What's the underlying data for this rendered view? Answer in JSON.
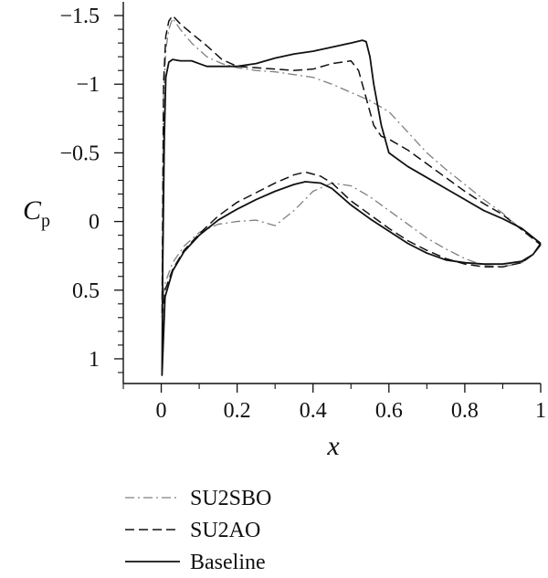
{
  "chart_data": {
    "type": "line",
    "title": "",
    "xlabel": "x",
    "ylabel": "C",
    "ylabel_subscript": "p",
    "xlim": [
      -0.1,
      1.0
    ],
    "ylim": [
      1.18,
      -1.6
    ],
    "y_inverted": true,
    "grid": false,
    "legend_position": "bottom-left",
    "x_ticks": [
      0,
      0.2,
      0.4,
      0.6,
      0.8,
      1
    ],
    "x_tick_labels": [
      "0",
      "0.2",
      "0.4",
      "0.6",
      "0.8",
      "1"
    ],
    "y_ticks": [
      -1.5,
      -1,
      -0.5,
      0,
      0.5,
      1
    ],
    "y_tick_labels": [
      "−1.5",
      "−1",
      "−0.5",
      "0",
      "0.5",
      "1"
    ],
    "series": [
      {
        "name": "SU2SBO",
        "color": "#808080",
        "dash": "dashdot",
        "width": 1.3,
        "upper": {
          "x": [
            0.002,
            0.006,
            0.012,
            0.02,
            0.03,
            0.05,
            0.08,
            0.12,
            0.16,
            0.2,
            0.25,
            0.3,
            0.35,
            0.4,
            0.45,
            0.5,
            0.55,
            0.6,
            0.65,
            0.7,
            0.75,
            0.8,
            0.85,
            0.9,
            0.95,
            1.0
          ],
          "y": [
            0.6,
            -0.9,
            -1.25,
            -1.4,
            -1.48,
            -1.4,
            -1.3,
            -1.2,
            -1.15,
            -1.12,
            -1.1,
            -1.09,
            -1.07,
            -1.05,
            -1.0,
            -0.94,
            -0.88,
            -0.8,
            -0.65,
            -0.5,
            -0.38,
            -0.27,
            -0.16,
            -0.06,
            0.06,
            0.17
          ]
        },
        "lower": {
          "x": [
            0.002,
            0.01,
            0.03,
            0.06,
            0.1,
            0.15,
            0.2,
            0.25,
            0.3,
            0.35,
            0.4,
            0.45,
            0.5,
            0.55,
            0.6,
            0.65,
            0.7,
            0.75,
            0.8,
            0.85,
            0.9,
            0.95,
            0.98,
            1.0
          ],
          "y": [
            0.6,
            0.45,
            0.3,
            0.18,
            0.08,
            0.02,
            0.0,
            -0.01,
            0.03,
            -0.08,
            -0.22,
            -0.28,
            -0.26,
            -0.18,
            -0.08,
            0.02,
            0.12,
            0.2,
            0.27,
            0.32,
            0.33,
            0.3,
            0.24,
            0.17
          ]
        }
      },
      {
        "name": "SU2AO",
        "color": "#111111",
        "dash": "dashed",
        "width": 1.5,
        "upper": {
          "x": [
            0.002,
            0.006,
            0.012,
            0.02,
            0.03,
            0.05,
            0.08,
            0.12,
            0.16,
            0.2,
            0.25,
            0.3,
            0.35,
            0.4,
            0.45,
            0.5,
            0.52,
            0.54,
            0.56,
            0.58,
            0.6,
            0.65,
            0.7,
            0.75,
            0.8,
            0.85,
            0.9,
            0.95,
            1.0
          ],
          "y": [
            0.7,
            -1.0,
            -1.35,
            -1.46,
            -1.5,
            -1.44,
            -1.37,
            -1.28,
            -1.18,
            -1.13,
            -1.12,
            -1.11,
            -1.1,
            -1.11,
            -1.15,
            -1.17,
            -1.1,
            -0.9,
            -0.7,
            -0.62,
            -0.6,
            -0.52,
            -0.42,
            -0.32,
            -0.22,
            -0.13,
            -0.05,
            0.06,
            0.17
          ]
        },
        "lower": {
          "x": [
            0.002,
            0.01,
            0.03,
            0.06,
            0.1,
            0.15,
            0.2,
            0.25,
            0.3,
            0.35,
            0.38,
            0.42,
            0.45,
            0.5,
            0.55,
            0.6,
            0.65,
            0.7,
            0.75,
            0.8,
            0.85,
            0.9,
            0.95,
            0.98,
            1.0
          ],
          "y": [
            0.7,
            0.5,
            0.35,
            0.21,
            0.09,
            -0.04,
            -0.14,
            -0.21,
            -0.28,
            -0.34,
            -0.36,
            -0.33,
            -0.28,
            -0.15,
            -0.05,
            0.05,
            0.14,
            0.21,
            0.27,
            0.31,
            0.33,
            0.33,
            0.3,
            0.24,
            0.17
          ]
        }
      },
      {
        "name": "Baseline",
        "color": "#111111",
        "dash": "solid",
        "width": 1.8,
        "upper": {
          "x": [
            0.002,
            0.004,
            0.008,
            0.012,
            0.02,
            0.03,
            0.05,
            0.08,
            0.1,
            0.12,
            0.15,
            0.2,
            0.25,
            0.3,
            0.35,
            0.4,
            0.45,
            0.5,
            0.53,
            0.54,
            0.55,
            0.56,
            0.58,
            0.6,
            0.65,
            0.7,
            0.75,
            0.8,
            0.85,
            0.9,
            0.95,
            1.0
          ],
          "y": [
            1.12,
            0.3,
            -0.6,
            -1.05,
            -1.16,
            -1.18,
            -1.17,
            -1.17,
            -1.15,
            -1.13,
            -1.13,
            -1.13,
            -1.15,
            -1.19,
            -1.22,
            -1.24,
            -1.27,
            -1.3,
            -1.32,
            -1.31,
            -1.2,
            -1.0,
            -0.7,
            -0.5,
            -0.4,
            -0.32,
            -0.24,
            -0.16,
            -0.08,
            -0.02,
            0.05,
            0.16
          ]
        },
        "lower": {
          "x": [
            0.002,
            0.01,
            0.03,
            0.06,
            0.1,
            0.15,
            0.2,
            0.25,
            0.3,
            0.35,
            0.38,
            0.42,
            0.45,
            0.5,
            0.55,
            0.6,
            0.65,
            0.7,
            0.75,
            0.8,
            0.85,
            0.9,
            0.95,
            0.98,
            1.0
          ],
          "y": [
            1.12,
            0.55,
            0.36,
            0.22,
            0.1,
            -0.01,
            -0.09,
            -0.16,
            -0.22,
            -0.27,
            -0.29,
            -0.28,
            -0.24,
            -0.12,
            -0.02,
            0.07,
            0.16,
            0.23,
            0.28,
            0.3,
            0.31,
            0.31,
            0.29,
            0.24,
            0.16
          ]
        }
      }
    ]
  }
}
